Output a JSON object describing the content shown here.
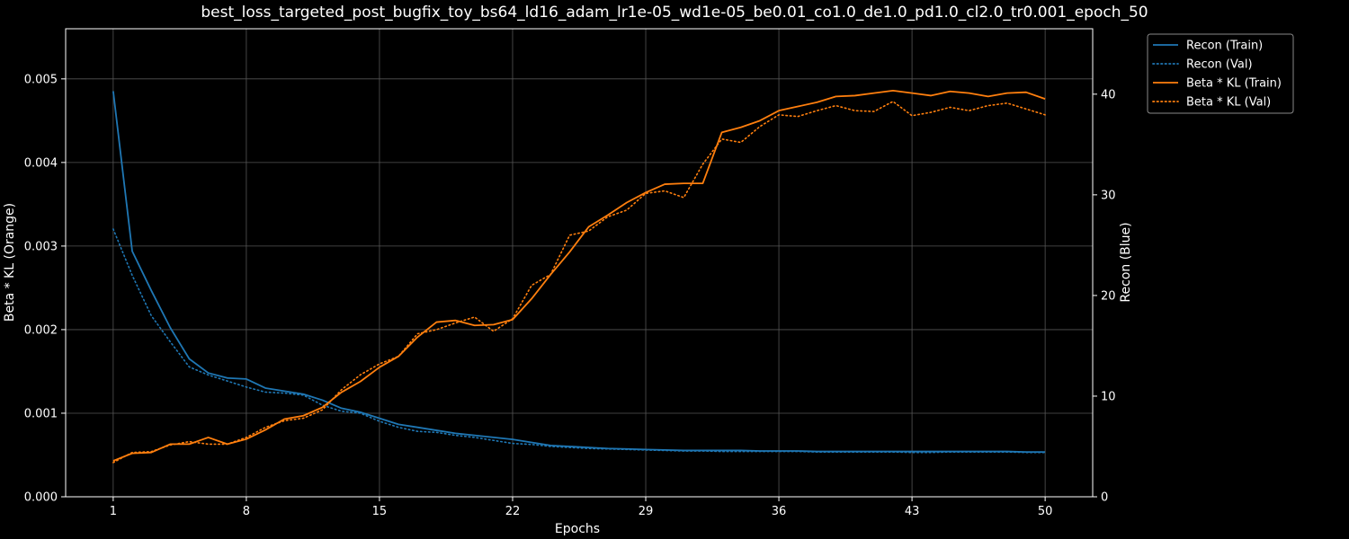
{
  "chart_data": {
    "type": "line",
    "title": "best_loss_targeted_post_bugfix_toy_bs64_ld16_adam_lr1e-05_wd1e-05_be0.01_co1.0_de1.0_pd1.0_cl2.0_tr0.001_epoch_50",
    "xlabel": "Epochs",
    "ylabel_left": "Beta * KL (Orange)",
    "ylabel_right": "Recon (Blue)",
    "xlim": [
      -1.5,
      52.5
    ],
    "ylim_left": [
      0,
      0.0056
    ],
    "ylim_right": [
      0,
      46.5
    ],
    "xticks": [
      1,
      8,
      15,
      22,
      29,
      36,
      43,
      50
    ],
    "yticks_left": [
      {
        "value": 0,
        "label": "0.000"
      },
      {
        "value": 0.001,
        "label": "0.001"
      },
      {
        "value": 0.002,
        "label": "0.002"
      },
      {
        "value": 0.003,
        "label": "0.003"
      },
      {
        "value": 0.004,
        "label": "0.004"
      },
      {
        "value": 0.005,
        "label": "0.005"
      }
    ],
    "yticks_right": [
      {
        "value": 0,
        "label": "0"
      },
      {
        "value": 10,
        "label": "10"
      },
      {
        "value": 20,
        "label": "20"
      },
      {
        "value": 30,
        "label": "30"
      },
      {
        "value": 40,
        "label": "40"
      }
    ],
    "grid": true,
    "legend_position": "outside-top-right",
    "colors": {
      "recon": "#1f77b4",
      "kl": "#ff7f0e",
      "grid": "#555555",
      "axes": "#ffffff",
      "background": "#000000"
    },
    "x": [
      1,
      2,
      3,
      4,
      5,
      6,
      7,
      8,
      9,
      10,
      11,
      12,
      13,
      14,
      15,
      16,
      17,
      18,
      19,
      20,
      21,
      22,
      23,
      24,
      25,
      26,
      27,
      28,
      29,
      30,
      31,
      32,
      33,
      34,
      35,
      36,
      37,
      38,
      39,
      40,
      41,
      42,
      43,
      44,
      45,
      46,
      47,
      48,
      49,
      50
    ],
    "series": [
      {
        "name": "Recon (Train)",
        "axis": "right",
        "color": "#1f77b4",
        "style": "solid",
        "values": [
          40.3,
          24.4,
          20.5,
          16.8,
          13.7,
          12.3,
          11.8,
          11.7,
          10.8,
          10.5,
          10.2,
          9.6,
          8.8,
          8.4,
          7.8,
          7.2,
          6.9,
          6.6,
          6.3,
          6.1,
          5.9,
          5.7,
          5.4,
          5.1,
          5.0,
          4.9,
          4.8,
          4.75,
          4.7,
          4.65,
          4.6,
          4.6,
          4.6,
          4.6,
          4.55,
          4.55,
          4.55,
          4.5,
          4.5,
          4.5,
          4.5,
          4.5,
          4.5,
          4.5,
          4.5,
          4.5,
          4.5,
          4.5,
          4.45,
          4.45
        ]
      },
      {
        "name": "Recon (Val)",
        "axis": "right",
        "color": "#1f77b4",
        "style": "dotted",
        "values": [
          26.6,
          22.0,
          18.0,
          15.4,
          12.9,
          12.1,
          11.5,
          10.9,
          10.4,
          10.3,
          10.1,
          9.1,
          8.5,
          8.3,
          7.5,
          6.9,
          6.5,
          6.4,
          6.1,
          5.9,
          5.6,
          5.3,
          5.2,
          5.0,
          4.9,
          4.8,
          4.75,
          4.7,
          4.65,
          4.6,
          4.55,
          4.55,
          4.5,
          4.5,
          4.5,
          4.5,
          4.5,
          4.45,
          4.45,
          4.45,
          4.45,
          4.45,
          4.4,
          4.4,
          4.45,
          4.45,
          4.45,
          4.45,
          4.4,
          4.4
        ]
      },
      {
        "name": "Beta * KL (Train)",
        "axis": "left",
        "color": "#ff7f0e",
        "style": "solid",
        "values": [
          0.00043,
          0.00052,
          0.00053,
          0.00063,
          0.00063,
          0.00071,
          0.00063,
          0.00069,
          0.0008,
          0.00093,
          0.00097,
          0.00107,
          0.00125,
          0.00138,
          0.00155,
          0.00168,
          0.00191,
          0.00209,
          0.00211,
          0.00205,
          0.00206,
          0.00212,
          0.00237,
          0.00266,
          0.00293,
          0.00323,
          0.00337,
          0.00352,
          0.00364,
          0.00374,
          0.00375,
          0.00375,
          0.00436,
          0.00442,
          0.0045,
          0.00462,
          0.00467,
          0.00472,
          0.00479,
          0.0048,
          0.00483,
          0.00486,
          0.00483,
          0.0048,
          0.00485,
          0.00483,
          0.00479,
          0.00483,
          0.00484,
          0.00476
        ]
      },
      {
        "name": "Beta * KL (Val)",
        "axis": "left",
        "color": "#ff7f0e",
        "style": "dotted",
        "values": [
          0.00041,
          0.00053,
          0.00054,
          0.00062,
          0.00066,
          0.00063,
          0.00063,
          0.00071,
          0.00083,
          0.00091,
          0.00094,
          0.00104,
          0.00128,
          0.00146,
          0.00159,
          0.00168,
          0.00195,
          0.002,
          0.00208,
          0.00215,
          0.00198,
          0.00213,
          0.00253,
          0.00266,
          0.00313,
          0.00318,
          0.00335,
          0.00343,
          0.00363,
          0.00366,
          0.00358,
          0.00398,
          0.00428,
          0.00424,
          0.00443,
          0.00457,
          0.00455,
          0.00462,
          0.00468,
          0.00462,
          0.00461,
          0.00473,
          0.00456,
          0.0046,
          0.00466,
          0.00462,
          0.00468,
          0.00471,
          0.00464,
          0.00457
        ]
      }
    ]
  }
}
